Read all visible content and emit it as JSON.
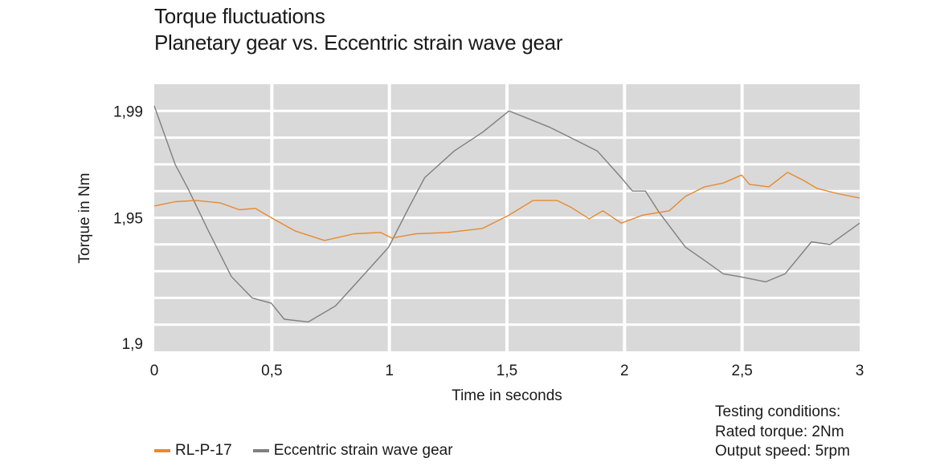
{
  "chart_data": {
    "type": "line",
    "title": "Torque fluctuations",
    "subtitle": "Planetary gear vs. Eccentric strain wave gear",
    "xlabel": "Time in seconds",
    "ylabel": "Torque in Nm",
    "xlim": [
      0,
      3
    ],
    "ylim": [
      1.9,
      2.0
    ],
    "x_ticks": [
      0,
      0.5,
      1,
      1.5,
      2,
      2.5,
      3
    ],
    "x_tick_labels": [
      "0",
      "0,5",
      "1",
      "1,5",
      "2",
      "2,5",
      "3"
    ],
    "y_ticks": [
      1.9,
      1.95,
      1.99
    ],
    "y_tick_labels": [
      "1,9",
      "1,95",
      "1,99"
    ],
    "y_grid_step": 0.01,
    "grid": true,
    "background": "#d9d9d9",
    "legend_position": "bottom-left",
    "series": [
      {
        "name": "RL-P-17",
        "color": "#e8892e",
        "x": [
          0,
          0.089,
          0.177,
          0.28,
          0.362,
          0.43,
          0.498,
          0.6,
          0.724,
          0.85,
          0.962,
          1.01,
          1.113,
          1.25,
          1.396,
          1.509,
          1.611,
          1.713,
          1.771,
          1.85,
          1.908,
          1.986,
          2.078,
          2.19,
          2.259,
          2.341,
          2.42,
          2.498,
          2.532,
          2.614,
          2.693,
          2.761,
          2.819,
          2.908,
          3.0
        ],
        "y": [
          1.9544,
          1.956,
          1.9565,
          1.9556,
          1.953,
          1.9535,
          1.95,
          1.945,
          1.9415,
          1.944,
          1.9445,
          1.9424,
          1.944,
          1.9445,
          1.946,
          1.951,
          1.9565,
          1.9565,
          1.954,
          1.9496,
          1.9526,
          1.948,
          1.951,
          1.9526,
          1.958,
          1.9616,
          1.963,
          1.966,
          1.9625,
          1.9616,
          1.967,
          1.964,
          1.961,
          1.959,
          1.9574
        ]
      },
      {
        "name": "Eccentric strain wave gear",
        "color": "#808080",
        "x": [
          0,
          0.089,
          0.143,
          0.225,
          0.328,
          0.416,
          0.498,
          0.553,
          0.655,
          0.771,
          0.874,
          0.997,
          1.078,
          1.15,
          1.276,
          1.396,
          1.509,
          1.679,
          1.771,
          1.884,
          1.986,
          2.034,
          2.089,
          2.147,
          2.259,
          2.341,
          2.42,
          2.488,
          2.601,
          2.683,
          2.795,
          2.874,
          3.0
        ],
        "y": [
          1.9919,
          1.97,
          1.961,
          1.946,
          1.928,
          1.92,
          1.918,
          1.912,
          1.911,
          1.917,
          1.927,
          1.939,
          1.953,
          1.965,
          1.975,
          1.982,
          1.99,
          1.984,
          1.98,
          1.975,
          1.965,
          1.96,
          1.96,
          1.952,
          1.939,
          1.934,
          1.929,
          1.928,
          1.926,
          1.929,
          1.941,
          1.94,
          1.948
        ]
      }
    ]
  },
  "testing_conditions": {
    "heading": "Testing conditions:",
    "rated_torque": "Rated torque: 2Nm",
    "output_speed": "Output speed: 5rpm"
  }
}
